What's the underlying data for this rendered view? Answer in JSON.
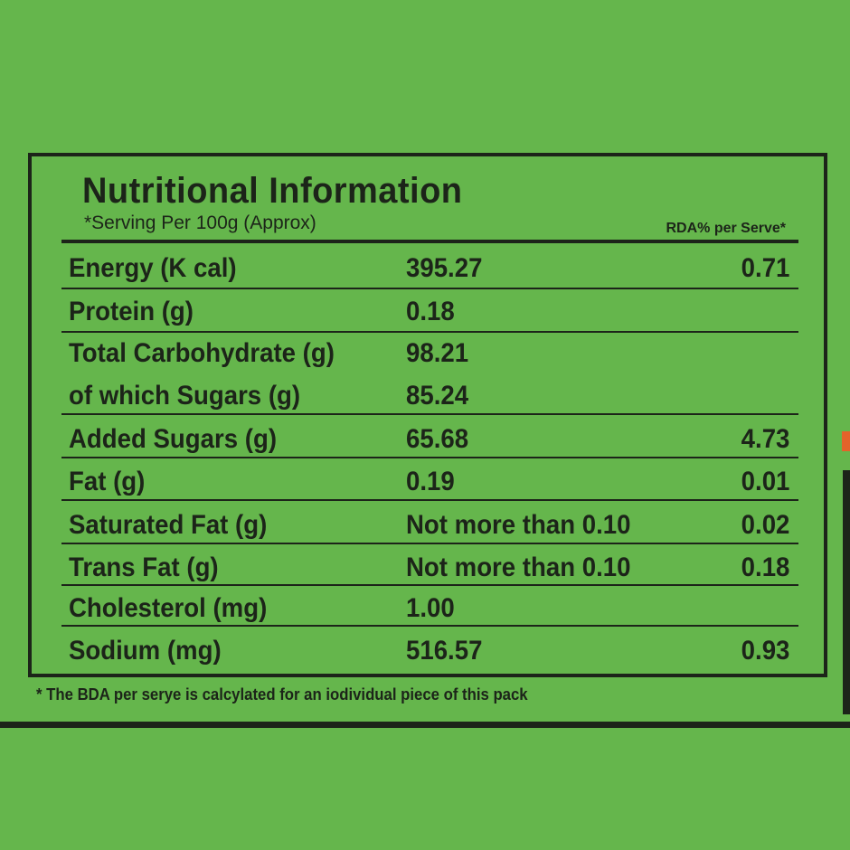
{
  "panel": {
    "title": "Nutritional Information",
    "subtitle": "*Serving Per 100g (Approx)",
    "rda_header": "RDA% per Serve*"
  },
  "rows": [
    {
      "name": "Energy (K cal)",
      "value": "395.27",
      "rda": "0.71"
    },
    {
      "name": "Protein (g)",
      "value": "0.18",
      "rda": ""
    },
    {
      "name": "Total Carbohydrate (g)",
      "value": "98.21",
      "rda": ""
    },
    {
      "name": "of which Sugars (g)",
      "value": "85.24",
      "rda": ""
    },
    {
      "name": "Added Sugars (g)",
      "value": "65.68",
      "rda": "4.73"
    },
    {
      "name": "Fat (g)",
      "value": "0.19",
      "rda": "0.01"
    },
    {
      "name": "Saturated Fat (g)",
      "value": "Not more than 0.10",
      "rda": "0.02"
    },
    {
      "name": "Trans Fat (g)",
      "value": "Not more than 0.10",
      "rda": "0.18"
    },
    {
      "name": "Cholesterol (mg)",
      "value": "1.00",
      "rda": ""
    },
    {
      "name": "Sodium (mg)",
      "value": "516.57",
      "rda": "0.93"
    }
  ],
  "footnote": "* The BDA per serye is calcylated for an iodividual piece of this pack",
  "colors": {
    "background": "#65b64c",
    "ink": "#1c2419",
    "accent": "#e4632a"
  }
}
